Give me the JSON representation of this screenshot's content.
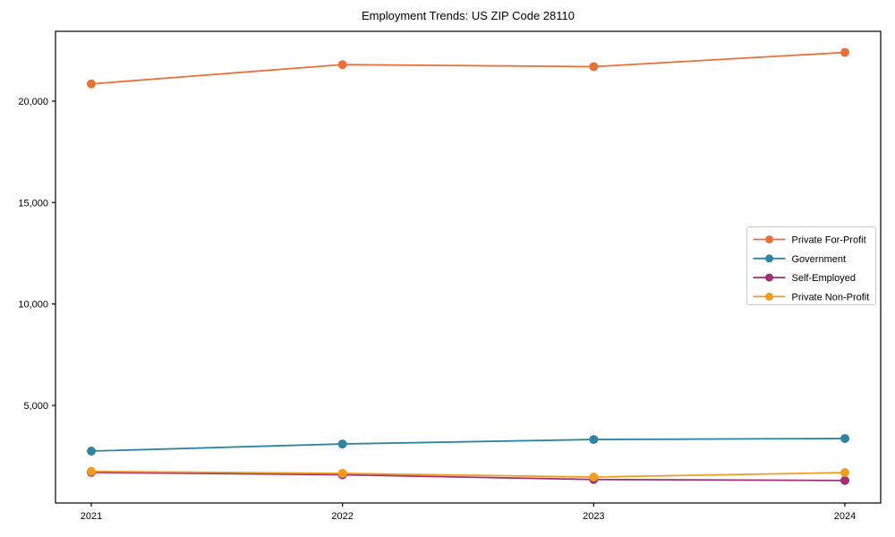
{
  "page": {
    "background_color": "#ffffff"
  },
  "chart_data": {
    "type": "line",
    "title": "Employment Trends: US ZIP Code 28110",
    "xlabel": "",
    "ylabel": "",
    "categories": [
      "2021",
      "2022",
      "2023",
      "2024"
    ],
    "series": [
      {
        "name": "Private For-Profit",
        "color": "#e8713a",
        "values": [
          20850,
          21800,
          21700,
          22400
        ]
      },
      {
        "name": "Government",
        "color": "#3185a0",
        "values": [
          2750,
          3100,
          3320,
          3370
        ]
      },
      {
        "name": "Self-Employed",
        "color": "#a03070",
        "values": [
          1700,
          1580,
          1350,
          1300
        ]
      },
      {
        "name": "Private Non-Profit",
        "color": "#f09c20",
        "values": [
          1750,
          1650,
          1470,
          1690
        ]
      }
    ],
    "ylim": [
      191,
      23441
    ],
    "yticks": [
      5000,
      10000,
      15000,
      20000
    ],
    "ytick_labels": [
      "5,000",
      "10,000",
      "15,000",
      "20,000"
    ],
    "legend_position": "center right",
    "grid": false,
    "axis_color": "#000000",
    "legend_border_color": "#cccccc"
  }
}
